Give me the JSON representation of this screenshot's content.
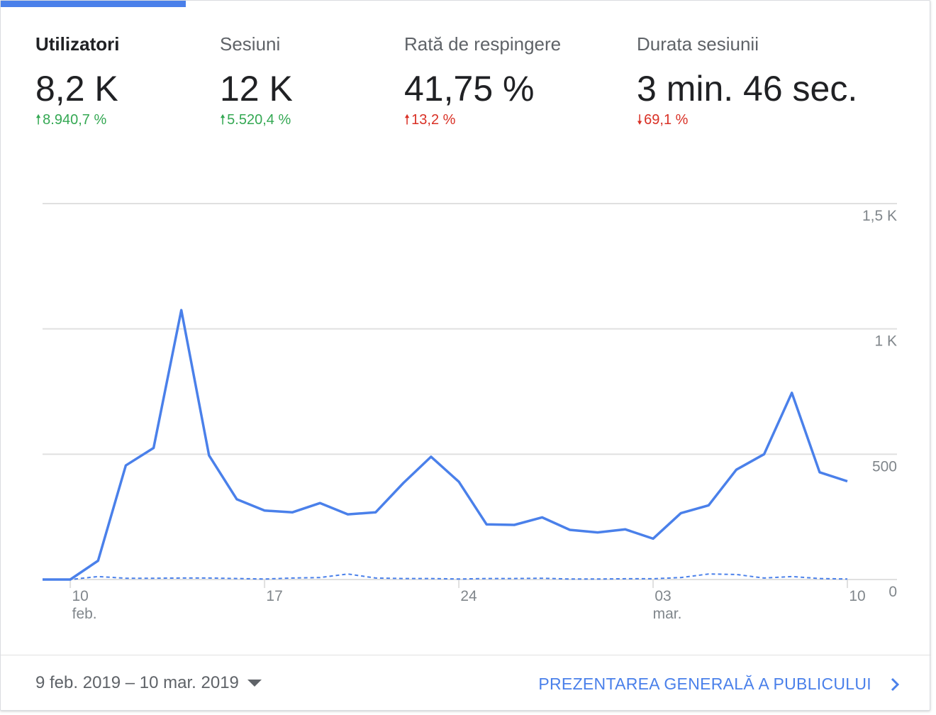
{
  "metrics": [
    {
      "label": "Utilizatori",
      "value": "8,2 K",
      "change": "8.940,7 %",
      "direction": "up",
      "status": "good"
    },
    {
      "label": "Sesiuni",
      "value": "12 K",
      "change": "5.520,4 %",
      "direction": "up",
      "status": "good"
    },
    {
      "label": "Rată de respingere",
      "value": "41,75 %",
      "change": "13,2 %",
      "direction": "up",
      "status": "bad"
    },
    {
      "label": "Durata sesiunii",
      "value": "3 min. 46 sec.",
      "change": "69,1 %",
      "direction": "down",
      "status": "bad"
    }
  ],
  "colors": {
    "accent": "#4a80ea",
    "positive": "#34a853",
    "negative": "#d93025",
    "gridline": "#e0e0e0",
    "text_muted": "#80868b"
  },
  "chart_data": {
    "type": "line",
    "x": [
      "9 feb",
      "10 feb",
      "11 feb",
      "12 feb",
      "13 feb",
      "14 feb",
      "15 feb",
      "16 feb",
      "17 feb",
      "18 feb",
      "19 feb",
      "20 feb",
      "21 feb",
      "22 feb",
      "23 feb",
      "24 feb",
      "25 feb",
      "26 feb",
      "27 feb",
      "28 feb",
      "01 mar",
      "02 mar",
      "03 mar",
      "04 mar",
      "05 mar",
      "06 mar",
      "07 mar",
      "08 mar",
      "09 mar",
      "10 mar"
    ],
    "series": [
      {
        "style": "solid",
        "values": [
          0,
          0,
          75,
          455,
          525,
          1075,
          495,
          320,
          275,
          268,
          305,
          260,
          268,
          385,
          490,
          390,
          220,
          218,
          248,
          198,
          188,
          200,
          163,
          265,
          296,
          438,
          500,
          745,
          428,
          392
        ]
      },
      {
        "style": "dashed",
        "values": [
          0,
          0,
          12,
          5,
          5,
          6,
          6,
          4,
          2,
          6,
          8,
          22,
          6,
          4,
          4,
          2,
          4,
          4,
          5,
          2,
          2,
          3,
          3,
          8,
          22,
          20,
          6,
          12,
          4,
          2
        ]
      }
    ],
    "ylim": [
      0,
      1500
    ],
    "yticks": [
      {
        "value": 0,
        "label": "0"
      },
      {
        "value": 500,
        "label": "500"
      },
      {
        "value": 1000,
        "label": "1 K"
      },
      {
        "value": 1500,
        "label": "1,5 K"
      }
    ],
    "xticks": [
      {
        "index": 1,
        "label": "10",
        "sublabel": "feb."
      },
      {
        "index": 8,
        "label": "17",
        "sublabel": ""
      },
      {
        "index": 15,
        "label": "24",
        "sublabel": ""
      },
      {
        "index": 22,
        "label": "03",
        "sublabel": "mar."
      },
      {
        "index": 29,
        "label": "10",
        "sublabel": ""
      }
    ],
    "grid": true,
    "legend": "none"
  },
  "footer": {
    "date_range": "9 feb. 2019 – 10 mar. 2019",
    "overview_link": "PREZENTAREA GENERALĂ A PUBLICULUI"
  }
}
